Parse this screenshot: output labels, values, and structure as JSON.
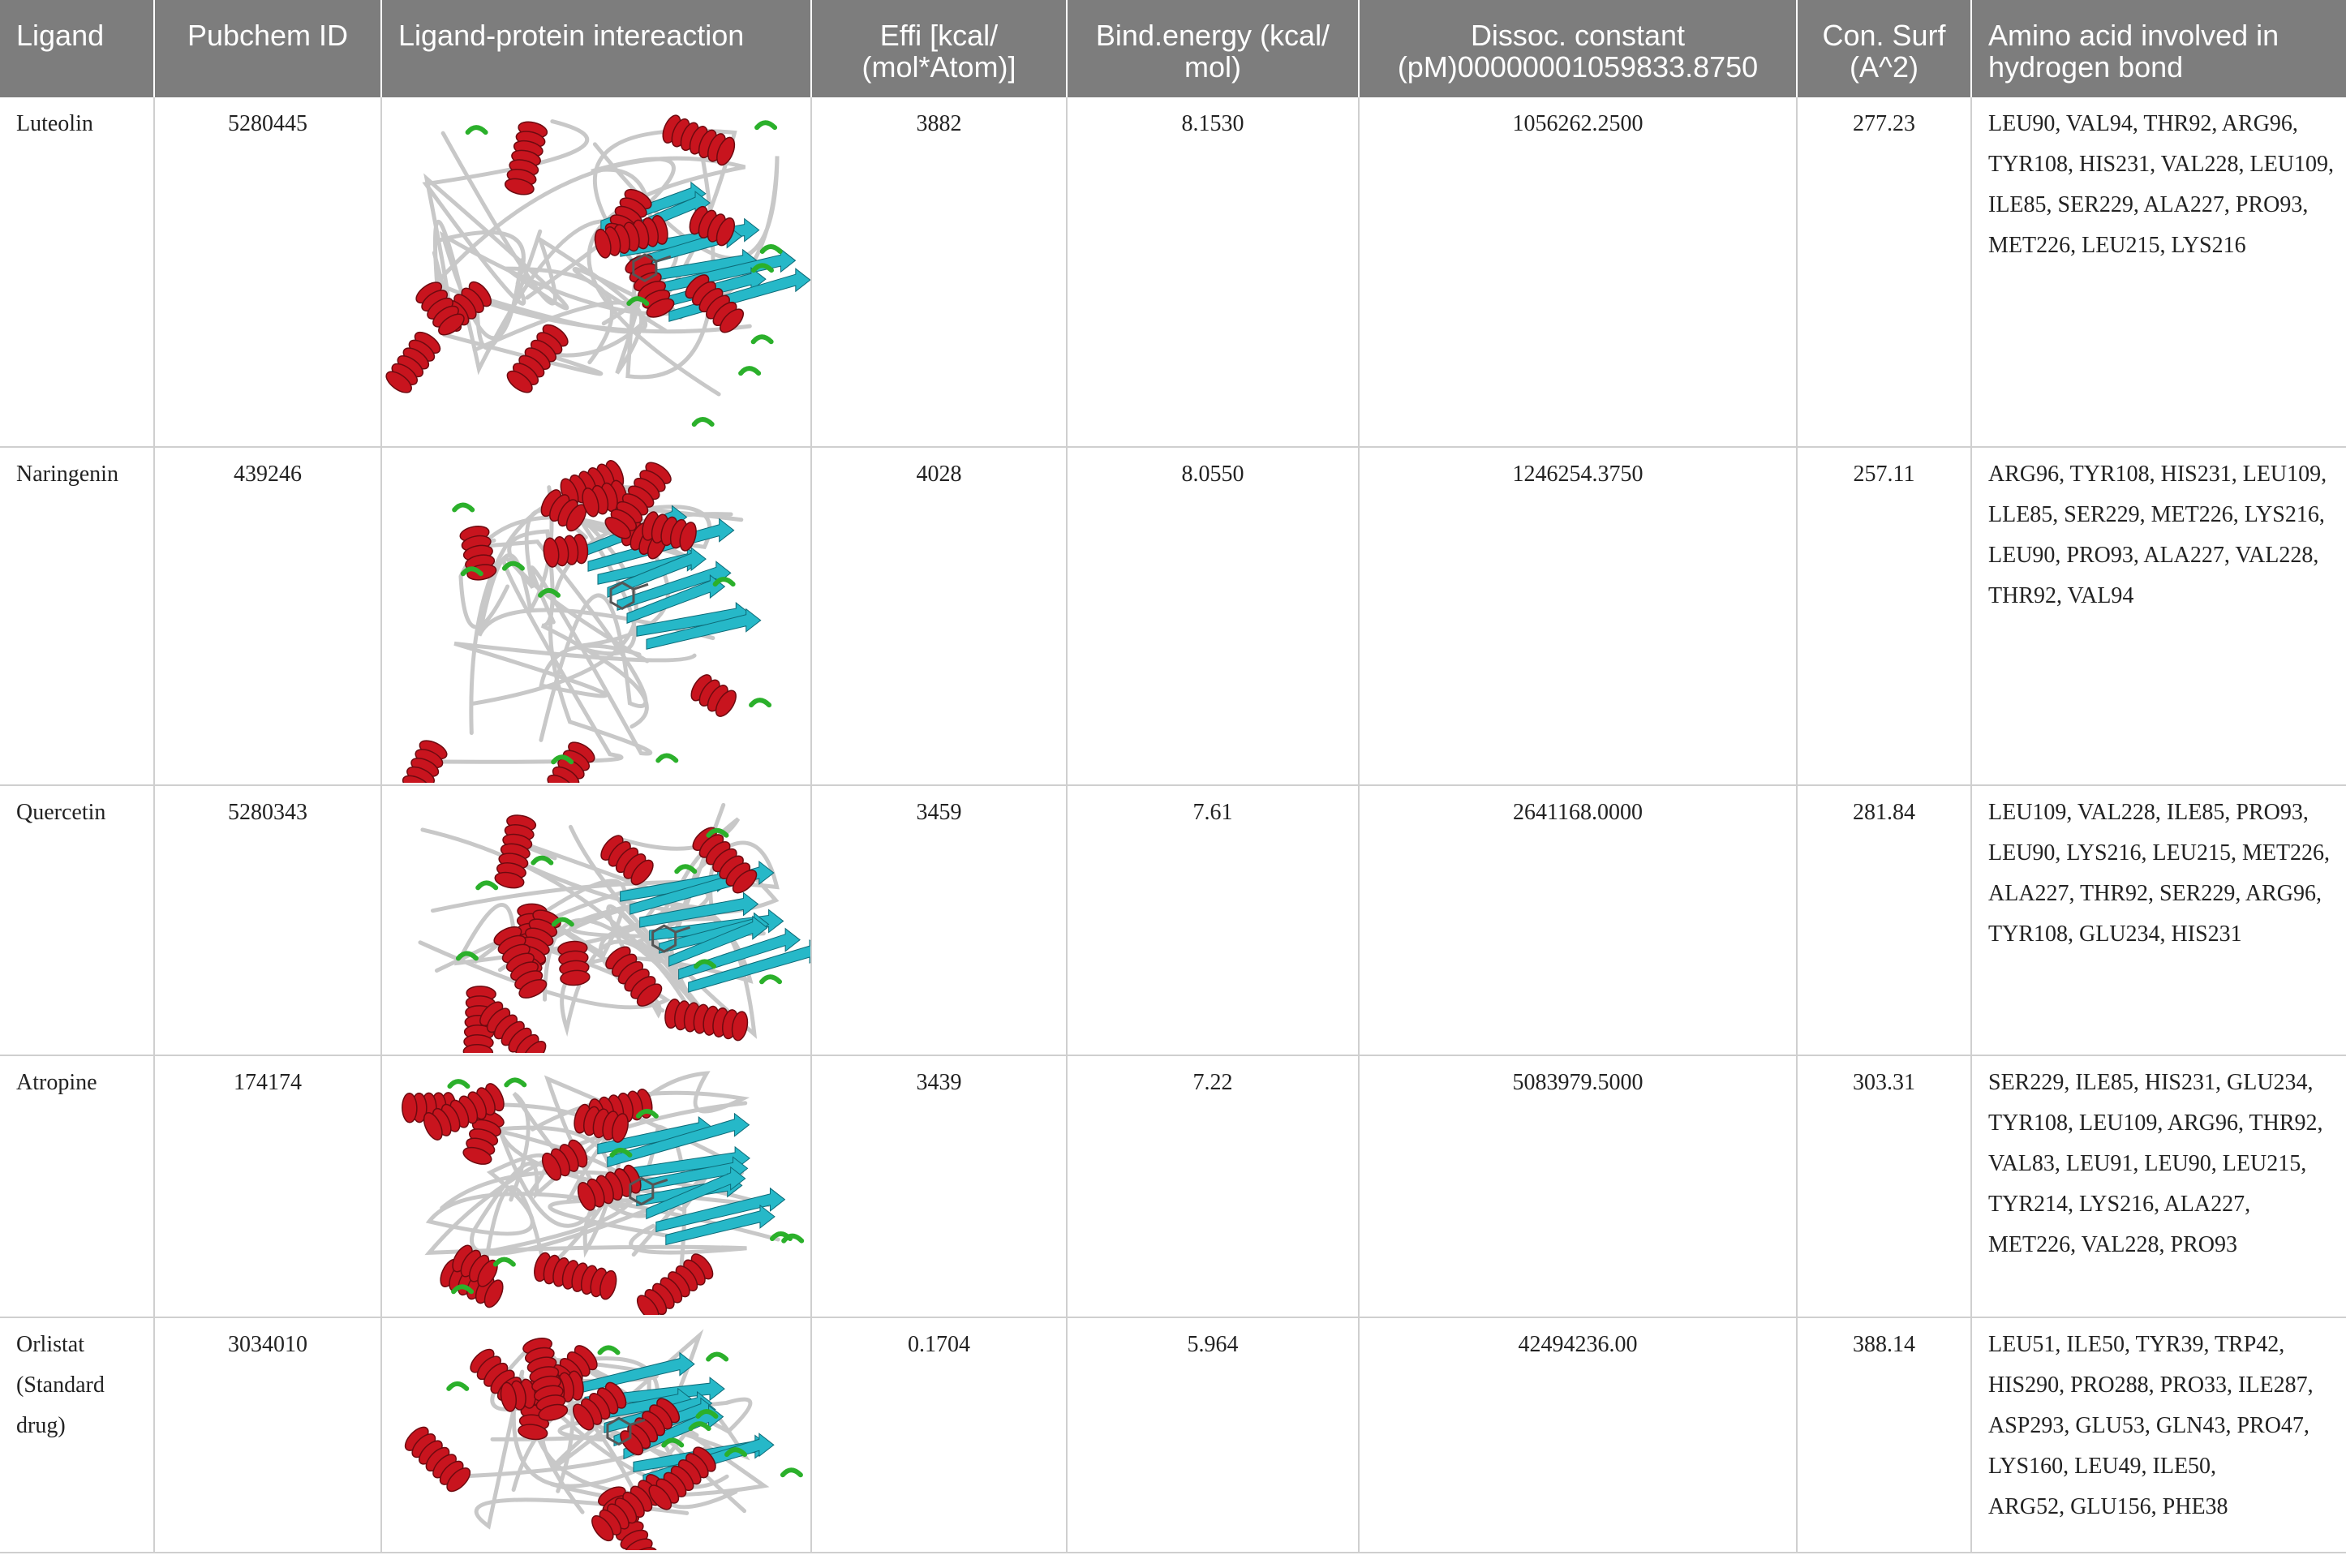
{
  "colors": {
    "header_bg": "#7d7d7d",
    "header_text": "#ffffff",
    "helix": "#c8141e",
    "sheet": "#26b8c8",
    "loop": "#c8c8c8",
    "turn": "#2bb02b",
    "disulfide": "#e8d51c",
    "grid": "#cfcfcf"
  },
  "headers": {
    "ligand": "Ligand",
    "pubchem": "Pubchem ID",
    "interaction": "Ligand-protein intereaction",
    "effi": "Effi [kcal/(mol*Atom)]",
    "bind": "Bind.energy (kcal/mol)",
    "dissoc": "Dissoc. constant (pM)00000001059833.8750",
    "consurf": "Con. Surf (A^2)",
    "amino": "Amino acid involved in hydrogen bond"
  },
  "header_lines": {
    "effi": [
      "Effi [kcal/",
      "(mol*Atom)]"
    ],
    "bind": [
      "Bind.energy (kcal/",
      "mol)"
    ],
    "dissoc": [
      "Dissoc. constant",
      "(pM)00000001059833.8750"
    ],
    "consurf": [
      "Con. Surf",
      "(A^2)"
    ],
    "amino": [
      "Amino acid involved in",
      "hydrogen bond"
    ]
  },
  "rows": [
    {
      "ligand_lines": [
        "Luteolin"
      ],
      "pubchem": "5280445",
      "structure_icon": "protein-ribbon-structure",
      "effi": "3882",
      "bind": "8.1530",
      "dissoc": "1056262.2500",
      "consurf": "277.23",
      "amino_lines": [
        "LEU90, VAL94, THR92, ARG96,",
        "TYR108, HIS231, VAL228, LEU109,",
        "ILE85, SER229, ALA227, PRO93,",
        "MET226, LEU215, LYS216"
      ]
    },
    {
      "ligand_lines": [
        "Naringenin"
      ],
      "pubchem": "439246",
      "structure_icon": "protein-ribbon-structure",
      "effi": "4028",
      "bind": "8.0550",
      "dissoc": "1246254.3750",
      "consurf": "257.11",
      "amino_lines": [
        "ARG96, TYR108, HIS231, LEU109,",
        "LLE85, SER229, MET226, LYS216,",
        "LEU90, PRO93, ALA227, VAL228,",
        "THR92, VAL94"
      ]
    },
    {
      "ligand_lines": [
        "Quercetin"
      ],
      "pubchem": "5280343",
      "structure_icon": "protein-ribbon-structure",
      "effi": "3459",
      "bind": "7.61",
      "dissoc": "2641168.0000",
      "consurf": "281.84",
      "amino_lines": [
        "LEU109, VAL228, ILE85, PRO93,",
        "LEU90, LYS216, LEU215, MET226,",
        "ALA227, THR92, SER229, ARG96,",
        "TYR108, GLU234, HIS231"
      ]
    },
    {
      "ligand_lines": [
        "Atropine"
      ],
      "pubchem": "174174",
      "structure_icon": "protein-ribbon-structure",
      "effi": "3439",
      "bind": "7.22",
      "dissoc": "5083979.5000",
      "consurf": "303.31",
      "amino_lines": [
        "SER229, ILE85, HIS231, GLU234,",
        "TYR108, LEU109, ARG96, THR92,",
        "VAL83, LEU91, LEU90, LEU215,",
        "TYR214, LYS216, ALA227,",
        "MET226, VAL228, PRO93"
      ]
    },
    {
      "ligand_lines": [
        "Orlistat",
        "(Standard",
        "drug)"
      ],
      "pubchem": "3034010",
      "structure_icon": "protein-ribbon-structure",
      "effi": "0.1704",
      "bind": "5.964",
      "dissoc": "42494236.00",
      "consurf": "388.14",
      "amino_lines": [
        "LEU51, ILE50, TYR39, TRP42,",
        "HIS290, PRO288, PRO33, ILE287,",
        "ASP293, GLU53, GLN43, PRO47,",
        "LYS160, LEU49, ILE50,",
        "ARG52, GLU156, PHE38"
      ]
    }
  ]
}
